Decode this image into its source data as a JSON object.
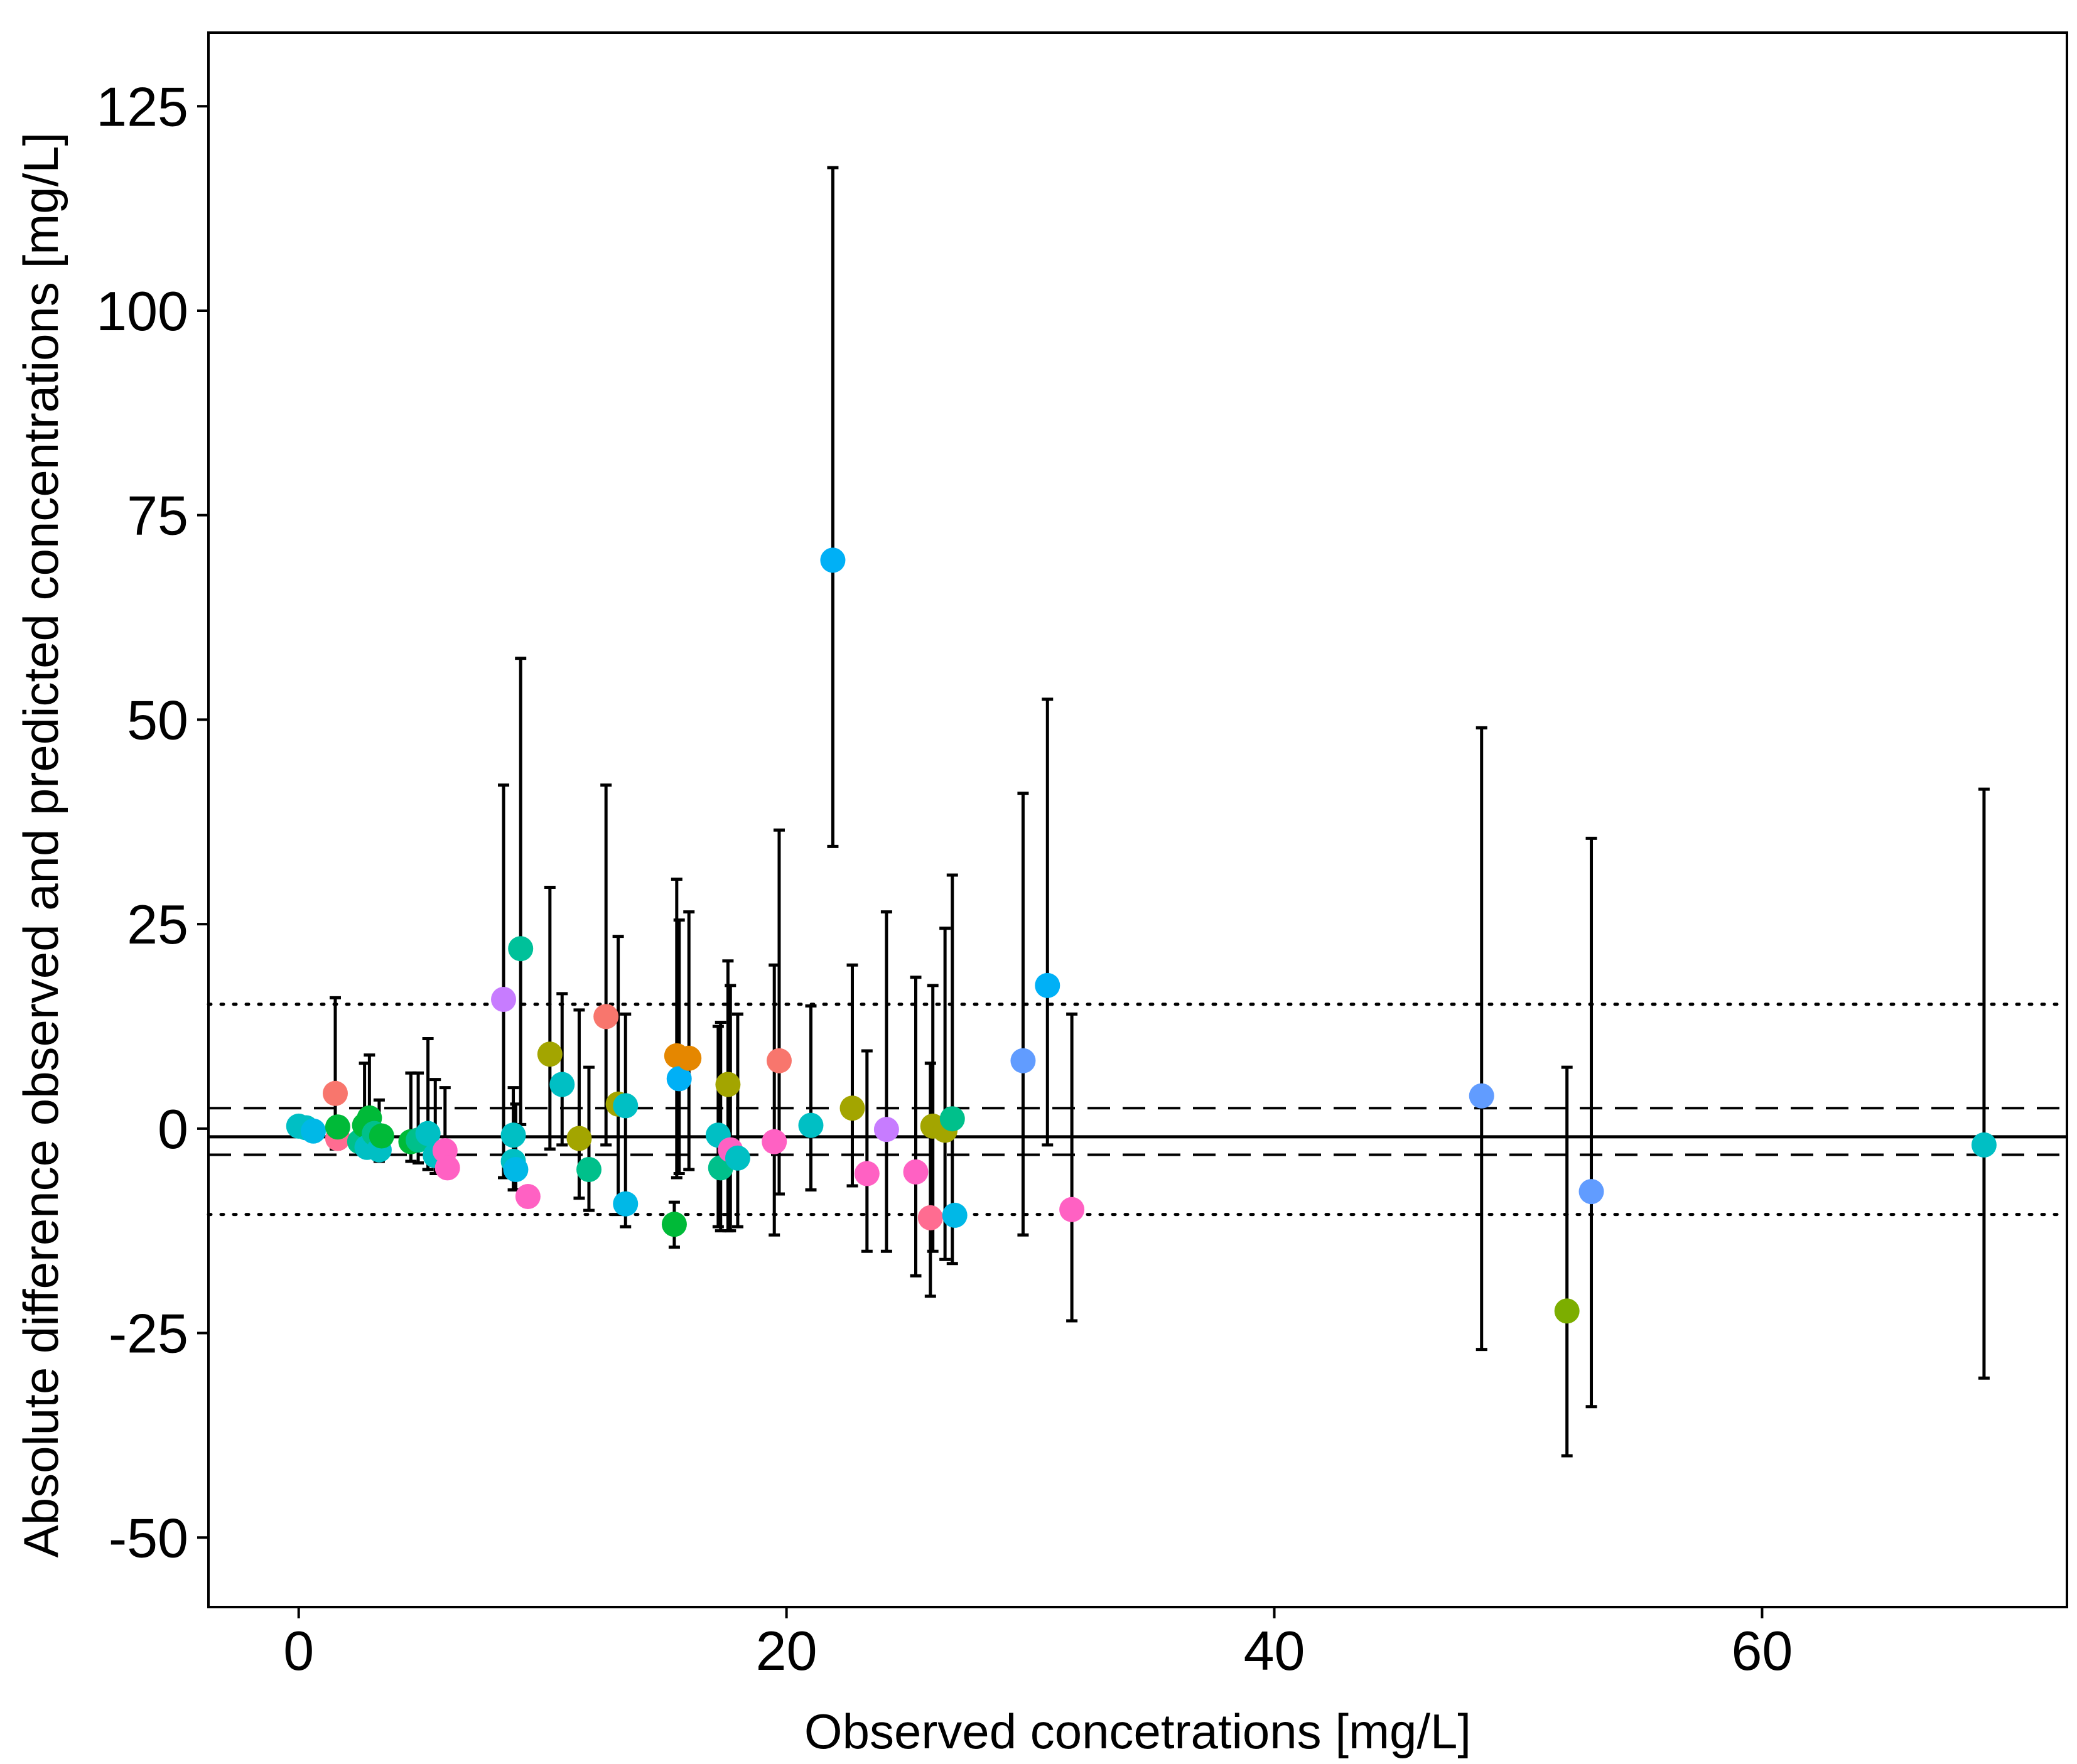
{
  "chart_data": {
    "type": "scatter",
    "title": "",
    "xlabel": "Observed concetrations [mg/L]",
    "ylabel": "Absolute difference observed and predicted concentrations [mg/L]",
    "xlim": [
      -3.7,
      72.5
    ],
    "ylim": [
      -58.5,
      134
    ],
    "xticks": [
      0,
      20,
      40,
      60
    ],
    "yticks": [
      125,
      100,
      75,
      50,
      25,
      0,
      -25,
      -50
    ],
    "xtick_labels": [
      "0",
      "20",
      "40",
      "60"
    ],
    "ytick_labels": [
      "125",
      "100",
      "75",
      "50",
      "25",
      "0",
      "-25",
      "-50"
    ],
    "grid": false,
    "reference_lines": [
      {
        "name": "mean-bias",
        "y": -1.0,
        "style": "solid"
      },
      {
        "name": "upper-ci",
        "y": 2.5,
        "style": "dashed"
      },
      {
        "name": "lower-ci",
        "y": -3.2,
        "style": "dashed"
      },
      {
        "name": "upper-loa",
        "y": 15.2,
        "style": "dotted"
      },
      {
        "name": "lower-loa",
        "y": -10.5,
        "style": "dotted"
      }
    ],
    "points": [
      {
        "x": 0.0,
        "y": 0.3,
        "color": "#00BFC4"
      },
      {
        "x": 0.3,
        "y": 0.1,
        "color": "#00BFC4"
      },
      {
        "x": 0.6,
        "y": -0.3,
        "color": "#00B8E7"
      },
      {
        "x": 1.5,
        "y": 4.3,
        "color": "#F8766D",
        "lo": -2.5,
        "hi": 16.0
      },
      {
        "x": 1.6,
        "y": -1.2,
        "color": "#FF6C91"
      },
      {
        "x": 1.6,
        "y": 0.2,
        "color": "#00BA38"
      },
      {
        "x": 2.5,
        "y": -1.6,
        "color": "#00C08B"
      },
      {
        "x": 2.7,
        "y": 0.4,
        "color": "#00BA38",
        "lo": -2.5,
        "hi": 8.0
      },
      {
        "x": 2.8,
        "y": -2.3,
        "color": "#00BFC4"
      },
      {
        "x": 2.9,
        "y": 1.3,
        "color": "#00BA38",
        "lo": -3.0,
        "hi": 9.0
      },
      {
        "x": 3.1,
        "y": -0.6,
        "color": "#00C08B"
      },
      {
        "x": 3.3,
        "y": -2.6,
        "color": "#00BFC4",
        "lo": -4.0,
        "hi": 3.5
      },
      {
        "x": 3.4,
        "y": -0.9,
        "color": "#00BA38"
      },
      {
        "x": 4.6,
        "y": -1.6,
        "color": "#00BA38",
        "lo": -4.0,
        "hi": 6.8
      },
      {
        "x": 4.9,
        "y": -1.4,
        "color": "#00C08B",
        "lo": -4.2,
        "hi": 6.8
      },
      {
        "x": 5.3,
        "y": -0.6,
        "color": "#00BFC4",
        "lo": -5.0,
        "hi": 11.0
      },
      {
        "x": 5.6,
        "y": -3.3,
        "color": "#00BFC4",
        "lo": -5.5,
        "hi": 6.0
      },
      {
        "x": 6.0,
        "y": -2.7,
        "color": "#FF61C3",
        "lo": -5.5,
        "hi": 5.0
      },
      {
        "x": 6.1,
        "y": -4.8,
        "color": "#FF61C3"
      },
      {
        "x": 8.4,
        "y": 15.8,
        "color": "#C77CFF",
        "lo": -6.0,
        "hi": 42.0
      },
      {
        "x": 8.8,
        "y": -0.8,
        "color": "#00BFC4",
        "lo": -7.5,
        "hi": 5.0
      },
      {
        "x": 8.8,
        "y": -4.0,
        "color": "#00BFC4"
      },
      {
        "x": 8.9,
        "y": -5.0,
        "color": "#00B8E7",
        "lo": -7.5,
        "hi": 3.0
      },
      {
        "x": 9.1,
        "y": 22.0,
        "color": "#00C19A",
        "lo": 0.5,
        "hi": 57.5
      },
      {
        "x": 9.4,
        "y": -8.3,
        "color": "#FF61C3"
      },
      {
        "x": 10.3,
        "y": 9.1,
        "color": "#A3A500",
        "lo": -2.5,
        "hi": 29.5
      },
      {
        "x": 10.8,
        "y": 5.4,
        "color": "#00BFC4",
        "lo": -2.0,
        "hi": 16.5
      },
      {
        "x": 11.5,
        "y": -1.2,
        "color": "#A3A500",
        "lo": -8.5,
        "hi": 14.5
      },
      {
        "x": 11.9,
        "y": -5.0,
        "color": "#00C08B",
        "lo": -10.0,
        "hi": 7.5
      },
      {
        "x": 12.6,
        "y": 13.7,
        "color": "#F8766D",
        "lo": -2.0,
        "hi": 42.0
      },
      {
        "x": 13.1,
        "y": 3.0,
        "color": "#A3A500",
        "lo": -10.5,
        "hi": 23.5
      },
      {
        "x": 13.4,
        "y": 2.8,
        "color": "#00BFC4",
        "lo": -12.0,
        "hi": 14.0
      },
      {
        "x": 13.4,
        "y": -9.2,
        "color": "#00B8E7"
      },
      {
        "x": 15.4,
        "y": -11.7,
        "color": "#00BA38",
        "lo": -14.5,
        "hi": -9.0
      },
      {
        "x": 15.5,
        "y": 8.9,
        "color": "#E58700",
        "lo": -6.0,
        "hi": 30.5
      },
      {
        "x": 15.6,
        "y": 6.1,
        "color": "#00B0F6",
        "lo": -5.5,
        "hi": 25.5
      },
      {
        "x": 16.0,
        "y": 8.6,
        "color": "#E58700",
        "lo": -5.0,
        "hi": 26.5
      },
      {
        "x": 17.2,
        "y": -0.8,
        "color": "#00BFC4",
        "lo": -12.0,
        "hi": 12.5
      },
      {
        "x": 17.3,
        "y": -4.8,
        "color": "#00C08B",
        "lo": -12.5,
        "hi": 13.0
      },
      {
        "x": 17.6,
        "y": 5.4,
        "color": "#A3A500",
        "lo": -12.5,
        "hi": 20.5
      },
      {
        "x": 17.7,
        "y": -2.6,
        "color": "#FF61C3",
        "lo": -12.5,
        "hi": 17.5
      },
      {
        "x": 18.0,
        "y": -3.6,
        "color": "#00BFC4",
        "lo": -12.0,
        "hi": 14.0
      },
      {
        "x": 19.5,
        "y": -1.6,
        "color": "#FF61C3",
        "lo": -13.0,
        "hi": 20.0
      },
      {
        "x": 19.7,
        "y": 8.3,
        "color": "#F8766D",
        "lo": -8.0,
        "hi": 36.5
      },
      {
        "x": 21.0,
        "y": 0.4,
        "color": "#00BFC4",
        "lo": -7.5,
        "hi": 15.0
      },
      {
        "x": 21.9,
        "y": 69.5,
        "color": "#00B0F6",
        "lo": 34.5,
        "hi": 117.5
      },
      {
        "x": 22.7,
        "y": 2.5,
        "color": "#A3A500",
        "lo": -7.0,
        "hi": 20.0
      },
      {
        "x": 23.3,
        "y": -5.5,
        "color": "#FF61C3",
        "lo": -15.0,
        "hi": 9.5
      },
      {
        "x": 24.1,
        "y": -0.1,
        "color": "#C77CFF",
        "lo": -15.0,
        "hi": 26.5
      },
      {
        "x": 25.3,
        "y": -5.3,
        "color": "#FF61C3",
        "lo": -18.0,
        "hi": 18.5
      },
      {
        "x": 25.9,
        "y": -10.9,
        "color": "#FF6C91",
        "lo": -20.5,
        "hi": 8.0
      },
      {
        "x": 26.0,
        "y": 0.3,
        "color": "#A3A500",
        "lo": -15.0,
        "hi": 17.5
      },
      {
        "x": 26.5,
        "y": -0.2,
        "color": "#A3A500",
        "lo": -16.0,
        "hi": 24.5
      },
      {
        "x": 26.8,
        "y": 1.2,
        "color": "#00C08B",
        "lo": -16.5,
        "hi": 31.0
      },
      {
        "x": 26.9,
        "y": -10.6,
        "color": "#00B8E7"
      },
      {
        "x": 29.7,
        "y": 8.3,
        "color": "#619CFF",
        "lo": -13.0,
        "hi": 41.0
      },
      {
        "x": 30.7,
        "y": 17.5,
        "color": "#00B0F6",
        "lo": -2.0,
        "hi": 52.5
      },
      {
        "x": 31.7,
        "y": -9.9,
        "color": "#FF61C3",
        "lo": -23.5,
        "hi": 14.0
      },
      {
        "x": 48.5,
        "y": 4.0,
        "color": "#619CFF",
        "lo": -27.0,
        "hi": 49.0
      },
      {
        "x": 52.0,
        "y": -22.3,
        "color": "#7CAE00",
        "lo": -40.0,
        "hi": 7.5
      },
      {
        "x": 53.0,
        "y": -7.7,
        "color": "#619CFF",
        "lo": -34.0,
        "hi": 35.5
      },
      {
        "x": 69.1,
        "y": -2.0,
        "color": "#00BFC4",
        "lo": -30.5,
        "hi": 41.5
      }
    ]
  }
}
